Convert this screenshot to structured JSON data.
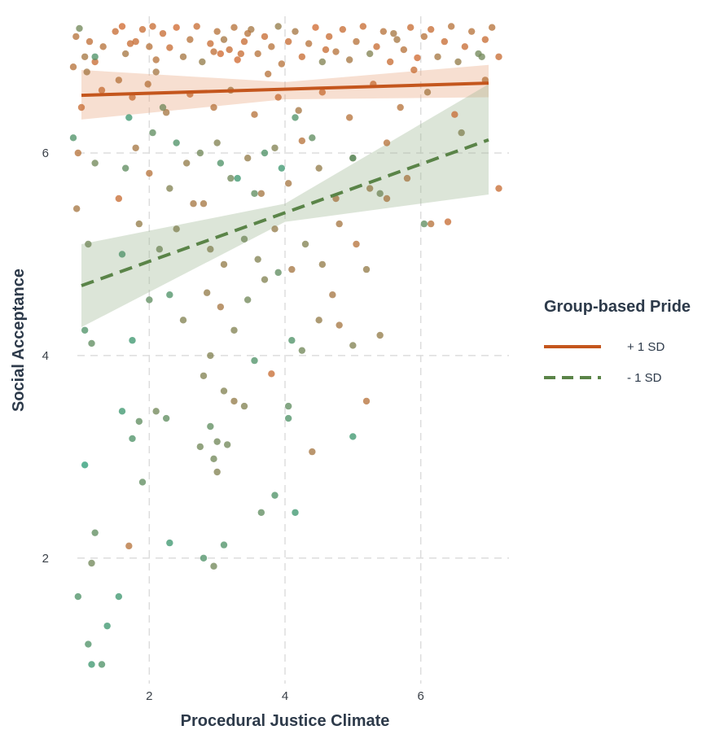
{
  "chart_data": {
    "type": "scatter",
    "title": "",
    "xlabel": "Procedural Justice Climate",
    "ylabel": "Social Acceptance",
    "xlim": [
      0.7,
      7.3
    ],
    "ylim": [
      0.6,
      7.35
    ],
    "x_ticks": [
      2,
      4,
      6
    ],
    "y_ticks": [
      2,
      4,
      6
    ],
    "x_tick_labels": [
      "2",
      "4",
      "6"
    ],
    "y_tick_labels": [
      "2",
      "4",
      "6"
    ],
    "grid": true,
    "grid_style": "dashed",
    "legend": {
      "title": "Group-based Pride",
      "position": "right",
      "entries": [
        {
          "label": "+ 1 SD",
          "color": "#c4561d",
          "dash": "solid"
        },
        {
          "label": "- 1 SD",
          "color": "#5a8448",
          "dash": "dashed"
        }
      ]
    },
    "colors": {
      "high": "#c4561d",
      "low": "#5a8448",
      "points_high": "#d9692f",
      "points_low": "#2f9e78",
      "grid": "#dddddd"
    },
    "series": [
      {
        "name": "+ 1 SD",
        "fit_line": {
          "x": [
            1.0,
            7.0
          ],
          "y": [
            6.57,
            6.69
          ]
        },
        "ci_band": {
          "x": [
            1.0,
            4.0,
            7.0
          ],
          "lower": [
            6.33,
            6.53,
            6.55
          ],
          "upper": [
            6.82,
            6.7,
            6.87
          ]
        }
      },
      {
        "name": "- 1 SD",
        "fit_line": {
          "x": [
            1.0,
            7.0
          ],
          "y": [
            4.69,
            6.13
          ]
        },
        "ci_band": {
          "x": [
            1.0,
            4.0,
            7.0
          ],
          "lower": [
            4.28,
            5.32,
            5.59
          ],
          "upper": [
            5.1,
            5.5,
            6.68
          ]
        }
      }
    ],
    "points": [
      [
        0.92,
        7.15,
        0.2
      ],
      [
        0.97,
        7.23,
        0.6
      ],
      [
        1.05,
        6.95,
        0.3
      ],
      [
        1.12,
        7.1,
        0.15
      ],
      [
        1.2,
        6.9,
        0.1
      ],
      [
        1.32,
        7.05,
        0.2
      ],
      [
        1.5,
        7.2,
        0.1
      ],
      [
        1.6,
        7.25,
        0.05
      ],
      [
        1.65,
        6.98,
        0.3
      ],
      [
        1.8,
        7.1,
        0.1
      ],
      [
        1.9,
        7.22,
        0.1
      ],
      [
        2.0,
        7.05,
        0.2
      ],
      [
        2.05,
        7.25,
        0.1
      ],
      [
        2.1,
        6.92,
        0.2
      ],
      [
        2.2,
        7.18,
        0.1
      ],
      [
        2.3,
        7.04,
        0.1
      ],
      [
        2.4,
        7.24,
        0.05
      ],
      [
        2.5,
        6.95,
        0.3
      ],
      [
        2.6,
        7.12,
        0.2
      ],
      [
        2.7,
        7.25,
        0.1
      ],
      [
        2.78,
        6.9,
        0.4
      ],
      [
        2.9,
        7.08,
        0.1
      ],
      [
        3.0,
        7.2,
        0.2
      ],
      [
        3.05,
        6.98,
        0.05
      ],
      [
        3.1,
        7.12,
        0.3
      ],
      [
        3.18,
        7.02,
        0.1
      ],
      [
        3.25,
        7.24,
        0.2
      ],
      [
        3.3,
        6.92,
        0.05
      ],
      [
        3.4,
        7.1,
        0.1
      ],
      [
        3.5,
        7.22,
        0.3
      ],
      [
        3.6,
        6.98,
        0.2
      ],
      [
        3.7,
        7.15,
        0.1
      ],
      [
        3.8,
        7.05,
        0.2
      ],
      [
        3.9,
        7.25,
        0.4
      ],
      [
        3.95,
        6.88,
        0.2
      ],
      [
        4.05,
        7.1,
        0.1
      ],
      [
        4.15,
        7.2,
        0.3
      ],
      [
        4.25,
        6.95,
        0.1
      ],
      [
        4.35,
        7.08,
        0.2
      ],
      [
        4.45,
        7.24,
        0.05
      ],
      [
        4.55,
        6.9,
        0.5
      ],
      [
        4.65,
        7.15,
        0.1
      ],
      [
        4.75,
        7.0,
        0.2
      ],
      [
        4.85,
        7.22,
        0.1
      ],
      [
        4.95,
        6.92,
        0.3
      ],
      [
        5.05,
        7.1,
        0.2
      ],
      [
        5.15,
        7.25,
        0.1
      ],
      [
        5.25,
        6.98,
        0.5
      ],
      [
        5.35,
        7.05,
        0.1
      ],
      [
        5.45,
        7.2,
        0.2
      ],
      [
        5.55,
        6.9,
        0.1
      ],
      [
        5.65,
        7.12,
        0.3
      ],
      [
        5.75,
        7.02,
        0.2
      ],
      [
        5.85,
        7.24,
        0.1
      ],
      [
        5.95,
        6.94,
        0.05
      ],
      [
        6.05,
        7.15,
        0.2
      ],
      [
        6.15,
        7.22,
        0.1
      ],
      [
        6.25,
        6.95,
        0.3
      ],
      [
        6.35,
        7.1,
        0.1
      ],
      [
        6.45,
        7.25,
        0.2
      ],
      [
        6.55,
        6.9,
        0.4
      ],
      [
        6.65,
        7.05,
        0.1
      ],
      [
        6.75,
        7.2,
        0.2
      ],
      [
        6.85,
        6.98,
        0.6
      ],
      [
        6.95,
        7.12,
        0.1
      ],
      [
        7.05,
        7.24,
        0.2
      ],
      [
        7.15,
        6.95,
        0.1
      ],
      [
        3.35,
        6.98,
        0.1
      ],
      [
        3.45,
        7.18,
        0.2
      ],
      [
        2.95,
        7.0,
        0.15
      ],
      [
        4.6,
        7.02,
        0.1
      ],
      [
        5.6,
        7.18,
        0.3
      ],
      [
        1.72,
        7.08,
        0.1
      ],
      [
        0.88,
        6.85,
        0.2
      ],
      [
        1.0,
        6.45,
        0.1
      ],
      [
        1.08,
        6.8,
        0.3
      ],
      [
        1.3,
        6.62,
        0.1
      ],
      [
        1.55,
        6.72,
        0.2
      ],
      [
        1.75,
        6.55,
        0.1
      ],
      [
        1.98,
        6.68,
        0.2
      ],
      [
        2.25,
        6.4,
        0.3
      ],
      [
        2.6,
        6.58,
        0.1
      ],
      [
        2.95,
        6.45,
        0.2
      ],
      [
        3.2,
        6.62,
        0.3
      ],
      [
        3.55,
        6.38,
        0.2
      ],
      [
        3.9,
        6.55,
        0.1
      ],
      [
        4.2,
        6.42,
        0.3
      ],
      [
        4.55,
        6.6,
        0.1
      ],
      [
        4.95,
        6.35,
        0.2
      ],
      [
        5.3,
        6.68,
        0.1
      ],
      [
        5.7,
        6.45,
        0.2
      ],
      [
        6.1,
        6.6,
        0.3
      ],
      [
        6.5,
        6.38,
        0.1
      ],
      [
        6.95,
        6.72,
        0.2
      ],
      [
        2.1,
        6.8,
        0.3
      ],
      [
        3.75,
        6.78,
        0.2
      ],
      [
        5.9,
        6.82,
        0.1
      ],
      [
        0.95,
        6.0,
        0.2
      ],
      [
        1.2,
        5.9,
        0.6
      ],
      [
        1.55,
        5.55,
        0.1
      ],
      [
        1.8,
        6.05,
        0.3
      ],
      [
        2.0,
        5.8,
        0.2
      ],
      [
        2.3,
        5.65,
        0.5
      ],
      [
        2.55,
        5.9,
        0.4
      ],
      [
        2.8,
        5.5,
        0.3
      ],
      [
        3.0,
        6.1,
        0.5
      ],
      [
        3.2,
        5.75,
        0.6
      ],
      [
        3.45,
        5.95,
        0.4
      ],
      [
        3.65,
        5.6,
        0.3
      ],
      [
        3.85,
        6.05,
        0.5
      ],
      [
        4.05,
        5.7,
        0.3
      ],
      [
        4.25,
        6.12,
        0.2
      ],
      [
        4.5,
        5.85,
        0.4
      ],
      [
        4.75,
        5.55,
        0.3
      ],
      [
        5.0,
        5.95,
        0.2
      ],
      [
        5.25,
        5.65,
        0.4
      ],
      [
        5.5,
        6.1,
        0.2
      ],
      [
        5.8,
        5.75,
        0.3
      ],
      [
        6.15,
        5.3,
        0.2
      ],
      [
        6.4,
        5.32,
        0.1
      ],
      [
        7.15,
        5.65,
        0.1
      ],
      [
        0.93,
        5.45,
        0.3
      ],
      [
        1.1,
        5.1,
        0.6
      ],
      [
        1.6,
        5.0,
        0.8
      ],
      [
        1.85,
        5.3,
        0.4
      ],
      [
        2.15,
        5.05,
        0.6
      ],
      [
        2.4,
        5.25,
        0.5
      ],
      [
        2.65,
        5.5,
        0.3
      ],
      [
        2.9,
        5.05,
        0.5
      ],
      [
        3.1,
        4.9,
        0.4
      ],
      [
        3.4,
        5.15,
        0.6
      ],
      [
        3.6,
        4.95,
        0.5
      ],
      [
        3.85,
        5.25,
        0.4
      ],
      [
        4.1,
        4.85,
        0.3
      ],
      [
        4.3,
        5.1,
        0.5
      ],
      [
        4.55,
        4.9,
        0.4
      ],
      [
        4.8,
        5.3,
        0.3
      ],
      [
        5.05,
        5.1,
        0.2
      ],
      [
        5.2,
        4.85,
        0.4
      ],
      [
        5.5,
        5.55,
        0.3
      ],
      [
        1.2,
        6.95,
        0.8
      ],
      [
        1.7,
        6.35,
        0.9
      ],
      [
        2.05,
        6.2,
        0.7
      ],
      [
        2.4,
        6.1,
        0.8
      ],
      [
        2.75,
        6.0,
        0.6
      ],
      [
        3.05,
        5.9,
        0.8
      ],
      [
        3.3,
        5.75,
        0.9
      ],
      [
        3.55,
        5.6,
        0.7
      ],
      [
        3.7,
        6.0,
        0.8
      ],
      [
        3.95,
        5.85,
        0.9
      ],
      [
        4.15,
        6.35,
        0.8
      ],
      [
        4.4,
        6.15,
        0.7
      ],
      [
        5.0,
        5.95,
        0.8
      ],
      [
        5.4,
        5.6,
        0.6
      ],
      [
        6.05,
        5.3,
        0.7
      ],
      [
        6.6,
        6.2,
        0.5
      ],
      [
        6.9,
        6.95,
        0.6
      ],
      [
        0.88,
        6.15,
        0.8
      ],
      [
        1.65,
        5.85,
        0.7
      ],
      [
        2.2,
        6.45,
        0.6
      ],
      [
        1.05,
        4.25,
        0.8
      ],
      [
        1.15,
        4.12,
        0.7
      ],
      [
        1.75,
        4.15,
        0.9
      ],
      [
        2.3,
        4.6,
        0.8
      ],
      [
        2.5,
        4.35,
        0.5
      ],
      [
        2.85,
        4.62,
        0.4
      ],
      [
        3.05,
        4.48,
        0.3
      ],
      [
        3.45,
        4.55,
        0.6
      ],
      [
        3.7,
        4.75,
        0.5
      ],
      [
        3.9,
        4.82,
        0.7
      ],
      [
        4.1,
        4.15,
        0.8
      ],
      [
        4.25,
        4.05,
        0.6
      ],
      [
        4.5,
        4.35,
        0.4
      ],
      [
        4.8,
        4.3,
        0.3
      ],
      [
        5.0,
        4.1,
        0.5
      ],
      [
        5.4,
        4.2,
        0.4
      ],
      [
        2.0,
        4.55,
        0.7
      ],
      [
        3.25,
        4.25,
        0.5
      ],
      [
        4.7,
        4.6,
        0.3
      ],
      [
        1.05,
        2.92,
        1.0
      ],
      [
        1.6,
        3.45,
        0.9
      ],
      [
        1.75,
        3.18,
        0.8
      ],
      [
        1.9,
        2.75,
        0.7
      ],
      [
        2.1,
        3.45,
        0.6
      ],
      [
        2.25,
        3.38,
        0.7
      ],
      [
        2.75,
        3.1,
        0.6
      ],
      [
        2.8,
        3.8,
        0.5
      ],
      [
        2.9,
        3.3,
        0.7
      ],
      [
        3.0,
        3.15,
        0.6
      ],
      [
        3.1,
        3.65,
        0.5
      ],
      [
        3.15,
        3.12,
        0.6
      ],
      [
        3.25,
        3.55,
        0.4
      ],
      [
        3.4,
        3.5,
        0.5
      ],
      [
        3.55,
        3.95,
        0.8
      ],
      [
        3.8,
        3.82,
        0.1
      ],
      [
        4.05,
        3.5,
        0.7
      ],
      [
        4.05,
        3.38,
        0.8
      ],
      [
        4.4,
        3.05,
        0.3
      ],
      [
        5.0,
        3.2,
        0.9
      ],
      [
        5.2,
        3.55,
        0.2
      ],
      [
        1.85,
        3.35,
        0.7
      ],
      [
        2.95,
        2.98,
        0.6
      ],
      [
        3.0,
        2.85,
        0.5
      ],
      [
        2.9,
        4.0,
        0.5
      ],
      [
        0.95,
        1.62,
        0.8
      ],
      [
        1.15,
        1.95,
        0.6
      ],
      [
        1.2,
        2.25,
        0.7
      ],
      [
        1.55,
        1.62,
        0.9
      ],
      [
        1.7,
        2.12,
        0.2
      ],
      [
        2.3,
        2.15,
        0.9
      ],
      [
        2.8,
        2.0,
        0.8
      ],
      [
        2.95,
        1.92,
        0.6
      ],
      [
        3.1,
        2.13,
        0.8
      ],
      [
        3.65,
        2.45,
        0.7
      ],
      [
        3.85,
        2.62,
        0.8
      ],
      [
        4.15,
        2.45,
        0.9
      ],
      [
        1.1,
        1.15,
        0.8
      ],
      [
        1.15,
        0.95,
        0.9
      ],
      [
        1.3,
        0.95,
        0.8
      ],
      [
        1.38,
        1.33,
        0.9
      ]
    ]
  }
}
